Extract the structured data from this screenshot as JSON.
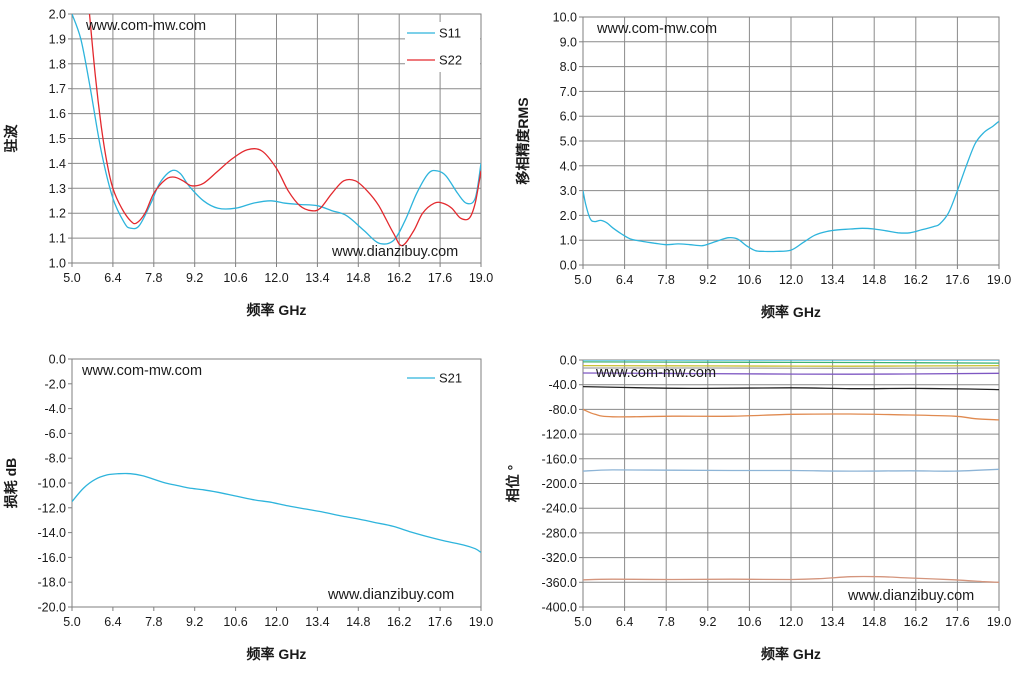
{
  "charts": [
    {
      "type": "line",
      "watermark_top": "www.com-mw.com",
      "watermark_bottom": "www.dianzibuy.com",
      "xlabel": "频率 GHz",
      "ylabel": "驻波",
      "xlim": [
        5.0,
        19.0
      ],
      "ylim": [
        1.0,
        2.0
      ],
      "xticks": [
        "5.0",
        "6.4",
        "7.8",
        "9.2",
        "10.6",
        "12.0",
        "13.4",
        "14.8",
        "16.2",
        "17.6",
        "19.0"
      ],
      "yticks": [
        "2.0",
        "1.9",
        "1.8",
        "1.7",
        "1.6",
        "1.5",
        "1.4",
        "1.3",
        "1.2",
        "1.1",
        "1.0"
      ],
      "grid": true,
      "legend": "top-right",
      "series": [
        {
          "name": "S11",
          "color": "#2eb4dc",
          "x": [
            5.0,
            5.3,
            5.6,
            6.0,
            6.4,
            6.8,
            7.0,
            7.3,
            7.7,
            8.0,
            8.4,
            8.7,
            9.0,
            9.5,
            10.0,
            10.6,
            11.2,
            11.8,
            12.3,
            12.8,
            13.4,
            13.9,
            14.4,
            15.0,
            15.5,
            16.0,
            16.4,
            16.8,
            17.2,
            17.5,
            17.8,
            18.2,
            18.5,
            18.8,
            19.0
          ],
          "y": [
            2.0,
            1.9,
            1.72,
            1.45,
            1.26,
            1.16,
            1.14,
            1.15,
            1.24,
            1.32,
            1.37,
            1.36,
            1.31,
            1.25,
            1.22,
            1.22,
            1.24,
            1.25,
            1.24,
            1.235,
            1.23,
            1.21,
            1.19,
            1.13,
            1.08,
            1.09,
            1.17,
            1.28,
            1.36,
            1.37,
            1.35,
            1.28,
            1.24,
            1.26,
            1.4
          ]
        },
        {
          "name": "S22",
          "color": "#e3292e",
          "x": [
            5.6,
            5.8,
            6.0,
            6.2,
            6.4,
            6.7,
            7.0,
            7.2,
            7.5,
            7.8,
            8.2,
            8.5,
            8.8,
            9.1,
            9.5,
            10.0,
            10.5,
            11.0,
            11.5,
            12.0,
            12.4,
            12.8,
            13.2,
            13.5,
            13.9,
            14.3,
            14.7,
            15.1,
            15.5,
            16.0,
            16.3,
            16.7,
            17.0,
            17.4,
            17.7,
            18.0,
            18.3,
            18.6,
            18.8,
            19.0
          ],
          "y": [
            2.0,
            1.75,
            1.55,
            1.4,
            1.3,
            1.22,
            1.17,
            1.16,
            1.2,
            1.28,
            1.335,
            1.345,
            1.33,
            1.31,
            1.32,
            1.37,
            1.42,
            1.455,
            1.45,
            1.38,
            1.29,
            1.23,
            1.21,
            1.22,
            1.28,
            1.33,
            1.33,
            1.29,
            1.23,
            1.12,
            1.07,
            1.13,
            1.2,
            1.24,
            1.24,
            1.22,
            1.18,
            1.18,
            1.24,
            1.37
          ]
        }
      ]
    },
    {
      "type": "line",
      "watermark_top": "www.com-mw.com",
      "xlabel": "频率 GHz",
      "ylabel": "移相精度RMS",
      "xlim": [
        5.0,
        19.0
      ],
      "ylim": [
        0.0,
        10.0
      ],
      "xticks": [
        "5.0",
        "6.4",
        "7.8",
        "9.2",
        "10.6",
        "12.0",
        "13.4",
        "14.8",
        "16.2",
        "17.6",
        "19.0"
      ],
      "yticks": [
        "10.0",
        "9.0",
        "8.0",
        "7.0",
        "6.0",
        "5.0",
        "4.0",
        "3.0",
        "2.0",
        "1.0",
        "0.0"
      ],
      "grid": true,
      "series": [
        {
          "color": "#2eb4dc",
          "x": [
            5.0,
            5.1,
            5.25,
            5.4,
            5.6,
            5.8,
            6.0,
            6.3,
            6.6,
            7.0,
            7.4,
            7.8,
            8.2,
            8.6,
            9.0,
            9.3,
            9.6,
            9.9,
            10.2,
            10.5,
            10.8,
            11.1,
            11.5,
            12.0,
            12.4,
            12.8,
            13.2,
            13.6,
            14.0,
            14.4,
            14.8,
            15.2,
            15.6,
            16.0,
            16.4,
            16.8,
            17.0,
            17.3,
            17.6,
            17.9,
            18.2,
            18.5,
            18.8,
            19.0
          ],
          "y": [
            3.0,
            2.4,
            1.85,
            1.75,
            1.8,
            1.7,
            1.5,
            1.25,
            1.05,
            0.95,
            0.88,
            0.82,
            0.85,
            0.82,
            0.78,
            0.88,
            1.0,
            1.1,
            1.05,
            0.78,
            0.58,
            0.55,
            0.55,
            0.6,
            0.9,
            1.2,
            1.35,
            1.42,
            1.45,
            1.48,
            1.45,
            1.38,
            1.3,
            1.3,
            1.42,
            1.55,
            1.65,
            2.1,
            3.0,
            4.0,
            4.9,
            5.35,
            5.6,
            5.8
          ]
        }
      ]
    },
    {
      "type": "line",
      "watermark_top": "www.com-mw.com",
      "watermark_bottom": "www.dianzibuy.com",
      "xlabel": "频率 GHz",
      "ylabel": "损耗 dB",
      "xlim": [
        5.0,
        19.0
      ],
      "ylim": [
        -20.0,
        0.0
      ],
      "xticks": [
        "5.0",
        "6.4",
        "7.8",
        "9.2",
        "10.6",
        "12.0",
        "13.4",
        "14.8",
        "16.2",
        "17.6",
        "19.0"
      ],
      "yticks": [
        "0.0",
        "-2.0",
        "-4.0",
        "-6.0",
        "-8.0",
        "-10.0",
        "-12.0",
        "-14.0",
        "-16.0",
        "-18.0",
        "-20.0"
      ],
      "grid": false,
      "legend": "top-right",
      "series": [
        {
          "name": "S21",
          "color": "#2eb4dc",
          "x": [
            5.0,
            5.4,
            5.8,
            6.2,
            6.6,
            7.0,
            7.4,
            7.8,
            8.2,
            8.6,
            9.0,
            9.5,
            10.0,
            10.6,
            11.2,
            11.8,
            12.4,
            13.0,
            13.6,
            14.2,
            14.8,
            15.4,
            16.0,
            16.6,
            17.2,
            17.8,
            18.4,
            18.8,
            19.0
          ],
          "y": [
            -11.5,
            -10.4,
            -9.7,
            -9.35,
            -9.25,
            -9.25,
            -9.4,
            -9.7,
            -10.0,
            -10.2,
            -10.4,
            -10.55,
            -10.75,
            -11.05,
            -11.35,
            -11.55,
            -11.85,
            -12.1,
            -12.35,
            -12.65,
            -12.9,
            -13.2,
            -13.5,
            -13.95,
            -14.35,
            -14.7,
            -15.0,
            -15.3,
            -15.6
          ]
        }
      ]
    },
    {
      "type": "line",
      "watermark_top": "www.com-mw.com",
      "watermark_bottom": "www.dianzibuy.com",
      "xlabel": "频率 GHz",
      "ylabel": "相位 °",
      "xlim": [
        5.0,
        19.0
      ],
      "ylim": [
        -400.0,
        0.0
      ],
      "xticks": [
        "5.0",
        "6.4",
        "7.8",
        "9.2",
        "10.6",
        "12.0",
        "13.4",
        "14.8",
        "16.2",
        "17.6",
        "19.0"
      ],
      "yticks": [
        "0.0",
        "-40.0",
        "-80.0",
        "-120.0",
        "-160.0",
        "-200.0",
        "-240.0",
        "-280.0",
        "-320.0",
        "-360.0",
        "-400.0"
      ],
      "grid": true,
      "series": [
        {
          "color": "#2eb4dc",
          "x": [
            5.0,
            9.0,
            14.0,
            19.0
          ],
          "y": [
            0.0,
            0.0,
            0.0,
            0.0
          ]
        },
        {
          "color": "#3cb371",
          "x": [
            5.0,
            9.0,
            14.0,
            19.0
          ],
          "y": [
            -3.0,
            -3.5,
            -4.0,
            -5.0
          ]
        },
        {
          "color": "#c9c030",
          "x": [
            5.0,
            9.0,
            14.0,
            19.0
          ],
          "y": [
            -9.0,
            -9.5,
            -10.0,
            -9.0
          ]
        },
        {
          "color": "#a3a3a3",
          "x": [
            5.0,
            9.0,
            14.0,
            19.0
          ],
          "y": [
            -13.0,
            -13.0,
            -13.5,
            -13.0
          ]
        },
        {
          "color": "#7e57c2",
          "x": [
            5.0,
            9.0,
            14.0,
            19.0
          ],
          "y": [
            -21.0,
            -22.0,
            -23.0,
            -21.5
          ]
        },
        {
          "color": "#222222",
          "x": [
            5.0,
            7.0,
            9.0,
            12.0,
            14.0,
            16.0,
            18.0,
            19.0
          ],
          "y": [
            -43.0,
            -45.0,
            -46.0,
            -45.0,
            -46.5,
            -46.0,
            -47.0,
            -48.0
          ]
        },
        {
          "color": "#e08a50",
          "x": [
            5.0,
            5.4,
            6.0,
            8.0,
            10.0,
            12.0,
            14.0,
            16.0,
            17.5,
            18.2,
            19.0
          ],
          "y": [
            -80.0,
            -88.0,
            -92.0,
            -91.0,
            -91.0,
            -88.0,
            -87.5,
            -89.0,
            -91.0,
            -95.0,
            -97.0
          ]
        },
        {
          "color": "#8db4d6",
          "x": [
            5.0,
            6.0,
            8.0,
            10.0,
            12.0,
            14.0,
            16.0,
            17.5,
            19.0
          ],
          "y": [
            -180.0,
            -178.0,
            -178.5,
            -179.0,
            -179.0,
            -180.0,
            -179.5,
            -180.0,
            -177.0
          ]
        },
        {
          "color": "#d4957d",
          "x": [
            5.0,
            6.0,
            8.0,
            10.0,
            12.0,
            13.0,
            14.0,
            15.0,
            16.0,
            17.5,
            18.5,
            19.0
          ],
          "y": [
            -356.0,
            -355.0,
            -355.5,
            -355.0,
            -355.5,
            -354.0,
            -351.0,
            -351.0,
            -353.0,
            -356.0,
            -359.0,
            -360.0
          ]
        }
      ]
    }
  ]
}
